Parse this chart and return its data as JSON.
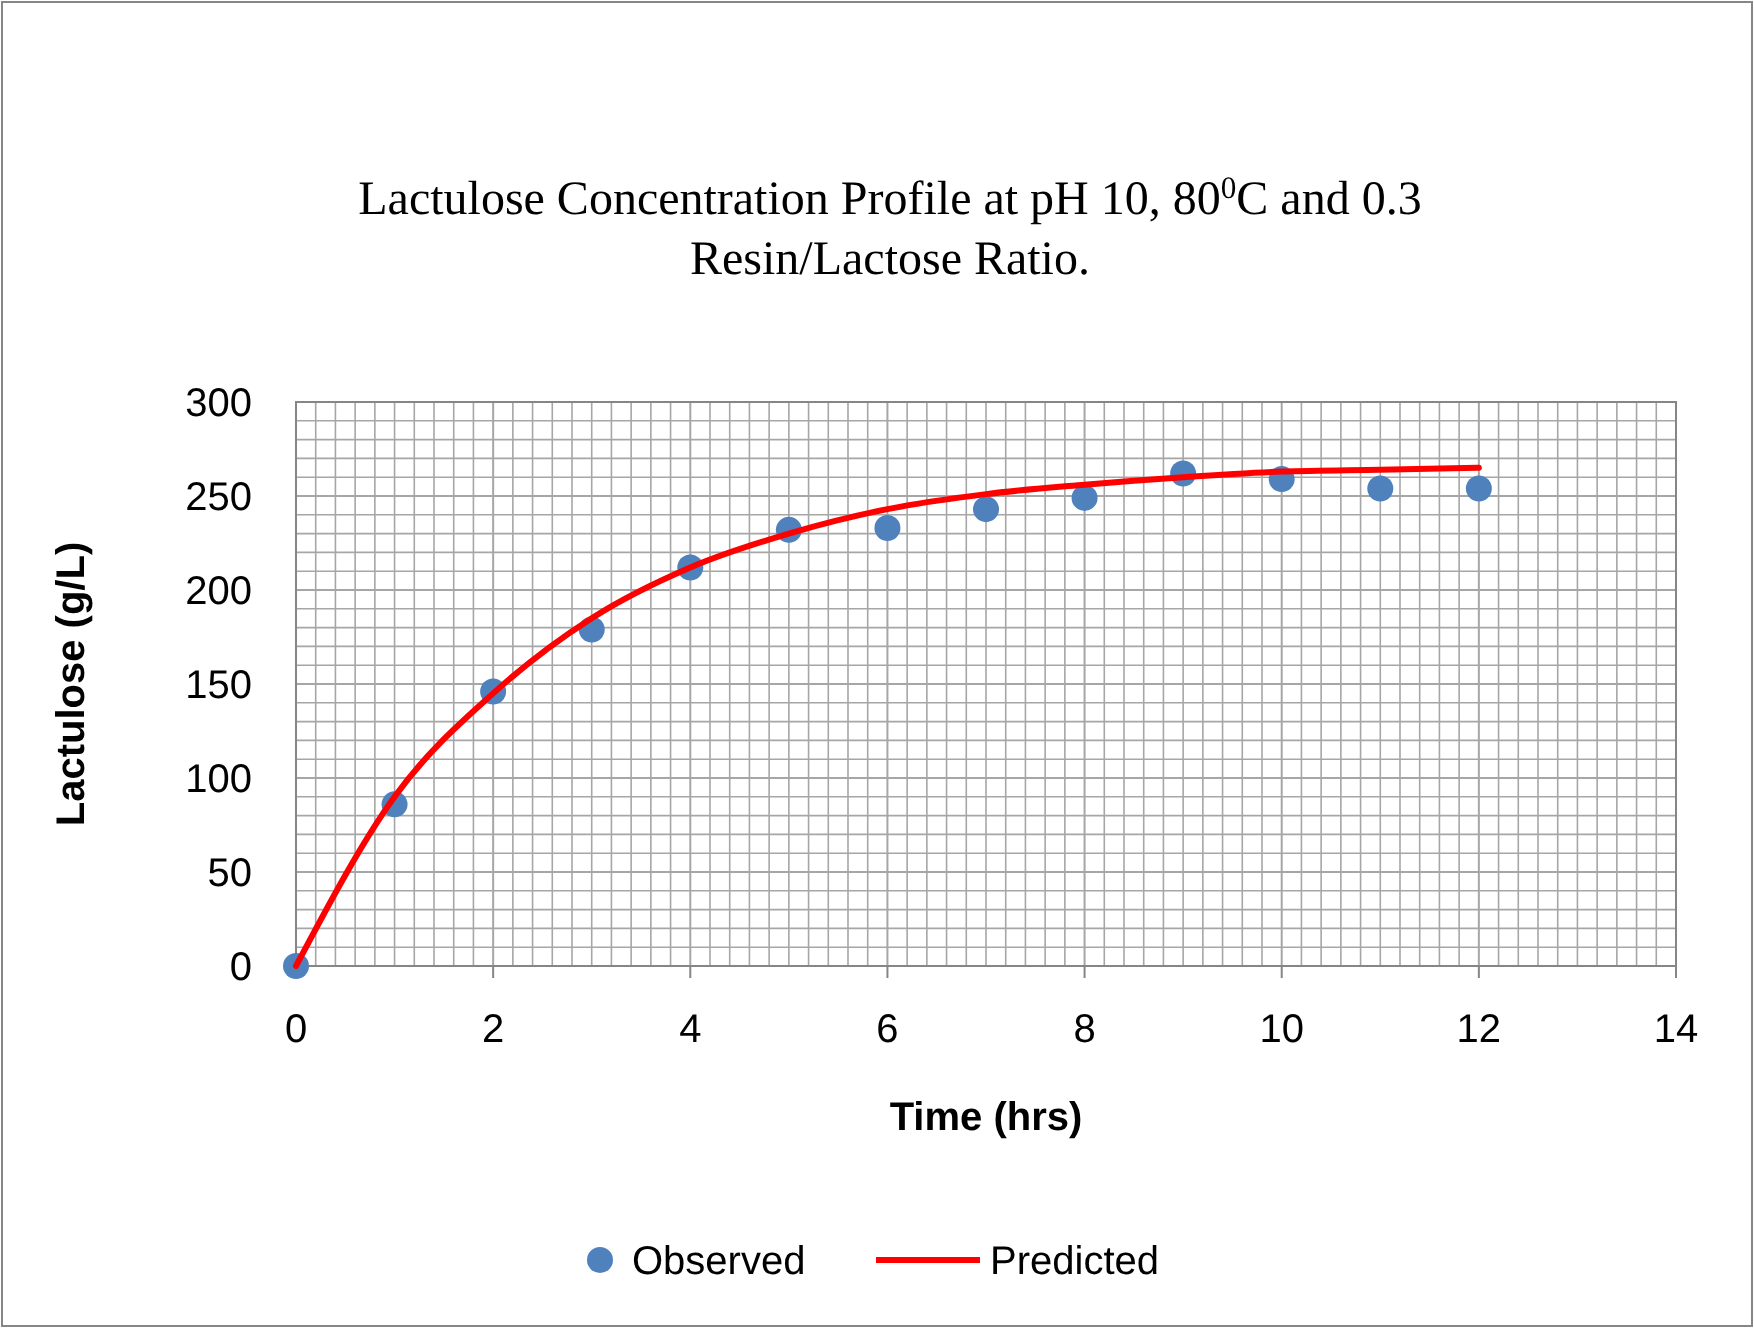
{
  "chart_data": {
    "type": "scatter",
    "title": "Lactulose Concentration Profile at pH 10, 80$^{0}$C and 0.3 Resin/Lactose Ratio.",
    "xlabel": "Time (hrs)",
    "ylabel": "Lactulose (g/L)",
    "x": [
      0,
      1,
      2,
      3,
      4,
      5,
      6,
      7,
      8,
      9,
      10,
      11,
      12
    ],
    "series": [
      {
        "name": "Observed",
        "color": "#4f81bd",
        "values": [
          0,
          86,
          146,
          179,
          212,
          232,
          233,
          243,
          249,
          262,
          259,
          254,
          254
        ]
      },
      {
        "name": "Predicted",
        "type": "line",
        "color": "#ff0000",
        "marker": "none",
        "values": [
          0,
          90,
          145,
          185,
          212,
          230,
          243,
          251,
          256,
          260,
          263,
          264,
          265
        ]
      }
    ],
    "xlim": [
      0,
      14
    ],
    "xticks": [
      0,
      2,
      4,
      6,
      8,
      10,
      12,
      14
    ],
    "ylim": [
      0,
      300
    ],
    "yticks": [
      0,
      50,
      100,
      150,
      200,
      250,
      300
    ],
    "grid": true,
    "legend": "bottom",
    "marker": "circle"
  }
}
